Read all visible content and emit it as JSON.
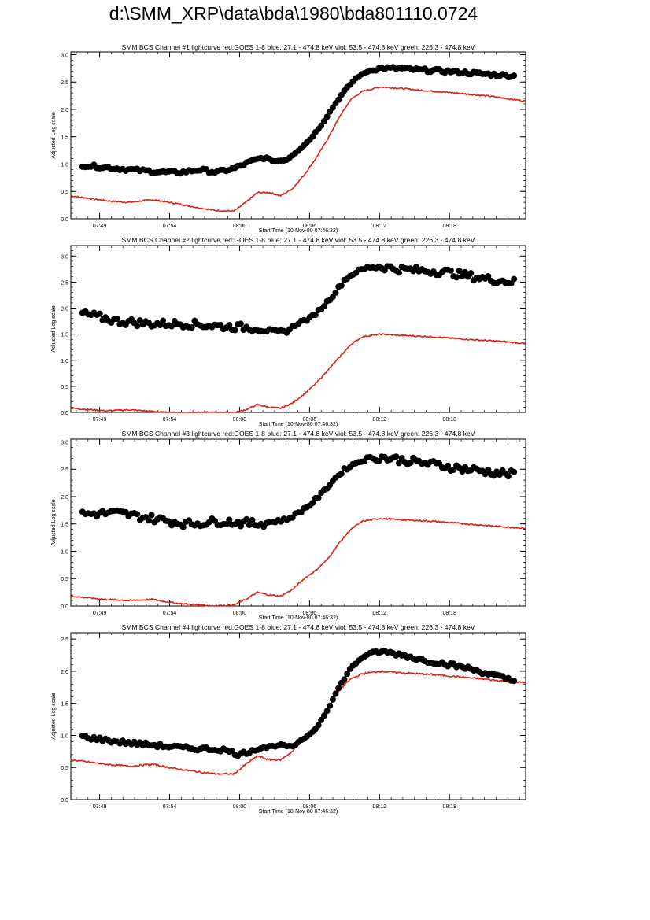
{
  "page": {
    "title": "d:\\SMM_XRP\\data\\bda\\1980\\bda801110.0724"
  },
  "colors": {
    "goes": "#dd1f10",
    "bcs": "#000000",
    "axis": "#000000"
  },
  "chart_data": [
    {
      "type": "line",
      "title": "SMM BCS Channel #1 lightcurve  red:GOES 1-8  blue: 27.1 - 474.8 keV  viol: 53.5 - 474.8 keV  green: 226.3 - 474.8 keV",
      "xlabel": "Start Time (10-Nov-80 07:46:32)",
      "ylabel": "Adjusted Log scale",
      "xlim": [
        0,
        39
      ],
      "ylim": [
        0,
        3.05
      ],
      "yticks": [
        0.0,
        0.5,
        1.0,
        1.5,
        2.0,
        2.5,
        3.0
      ],
      "ytick_labels": [
        "0.0",
        "0.5",
        "1.0",
        "1.5",
        "2.0",
        "2.5",
        "3.0"
      ],
      "xticks": [
        2.47,
        8.47,
        14.47,
        20.47,
        26.47,
        32.47
      ],
      "xtick_labels": [
        "07:49",
        "07:54",
        "08:00",
        "08:06",
        "08:12",
        "08:18"
      ],
      "series": [
        {
          "name": "BCS",
          "style": "markers",
          "color": "#000000",
          "x": [
            1.0,
            5.0,
            8.0,
            9.5,
            11.0,
            12.5,
            14.0,
            15.5,
            16.5,
            17.5,
            18.5,
            19.5,
            20.5,
            21.5,
            22.5,
            23.5,
            24.5,
            25.5,
            26.5,
            28.0,
            30.0,
            32.0,
            34.0,
            36.0,
            38.0
          ],
          "y": [
            0.98,
            0.9,
            0.85,
            0.85,
            0.9,
            0.85,
            0.92,
            1.05,
            1.12,
            1.05,
            1.08,
            1.25,
            1.45,
            1.72,
            2.05,
            2.35,
            2.58,
            2.7,
            2.75,
            2.75,
            2.72,
            2.7,
            2.67,
            2.64,
            2.61
          ]
        },
        {
          "name": "GOES 1-8",
          "style": "line",
          "color": "#dd1f10",
          "x": [
            0.0,
            3.0,
            5.0,
            7.0,
            9.0,
            11.0,
            12.5,
            14.0,
            15.0,
            16.0,
            17.0,
            18.0,
            19.0,
            20.0,
            21.0,
            22.0,
            23.0,
            24.0,
            25.0,
            26.5,
            28.0,
            30.0,
            33.0,
            36.0,
            39.0
          ],
          "y": [
            0.42,
            0.33,
            0.3,
            0.35,
            0.28,
            0.2,
            0.15,
            0.14,
            0.3,
            0.48,
            0.48,
            0.42,
            0.55,
            0.8,
            1.1,
            1.45,
            1.85,
            2.18,
            2.33,
            2.41,
            2.39,
            2.35,
            2.3,
            2.24,
            2.15
          ]
        }
      ]
    },
    {
      "type": "line",
      "title": "SMM BCS Channel #2 lightcurve  red:GOES 1-8  blue: 27.1 - 474.8 keV  viol: 53.5 - 474.8 keV  green: 226.3 - 474.8 keV",
      "xlabel": "Start Time (10-Nov-80 07:46:32)",
      "ylabel": "Adjusted Log scale",
      "xlim": [
        0,
        39
      ],
      "ylim": [
        0,
        3.2
      ],
      "yticks": [
        0.0,
        0.5,
        1.0,
        1.5,
        2.0,
        2.5,
        3.0
      ],
      "ytick_labels": [
        "0.0",
        "0.5",
        "1.0",
        "1.5",
        "2.0",
        "2.5",
        "3.0"
      ],
      "xticks": [
        2.47,
        8.47,
        14.47,
        20.47,
        26.47,
        32.47
      ],
      "xtick_labels": [
        "07:49",
        "07:54",
        "08:00",
        "08:06",
        "08:12",
        "08:18"
      ],
      "series": [
        {
          "name": "BCS",
          "style": "markers",
          "color": "#000000",
          "x": [
            1.0,
            4.0,
            7.0,
            10.0,
            13.0,
            16.0,
            17.5,
            18.5,
            19.5,
            20.5,
            21.5,
            22.5,
            23.5,
            24.5,
            25.5,
            26.5,
            28.0,
            30.0,
            32.0,
            34.0,
            36.0,
            38.0
          ],
          "y": [
            1.9,
            1.75,
            1.7,
            1.7,
            1.65,
            1.62,
            1.55,
            1.55,
            1.72,
            1.8,
            2.0,
            2.25,
            2.55,
            2.7,
            2.78,
            2.8,
            2.75,
            2.72,
            2.7,
            2.62,
            2.55,
            2.5
          ]
        },
        {
          "name": "GOES 1-8",
          "style": "line",
          "color": "#dd1f10",
          "x": [
            0.0,
            3.0,
            5.0,
            7.0,
            8.0,
            9.0,
            12.0,
            14.0,
            15.0,
            16.0,
            17.0,
            18.0,
            19.0,
            20.0,
            21.0,
            22.0,
            23.0,
            24.0,
            25.0,
            26.5,
            28.0,
            31.0,
            34.0,
            37.0,
            39.0
          ],
          "y": [
            0.08,
            0.03,
            0.05,
            0.02,
            0.0,
            0.0,
            0.0,
            0.0,
            0.05,
            0.15,
            0.1,
            0.08,
            0.18,
            0.35,
            0.55,
            0.8,
            1.05,
            1.3,
            1.45,
            1.5,
            1.48,
            1.45,
            1.4,
            1.36,
            1.32
          ]
        }
      ]
    },
    {
      "type": "line",
      "title": "SMM BCS Channel #3 lightcurve  red:GOES 1-8  blue: 27.1 - 474.8 keV  viol: 53.5 - 474.8 keV  green: 226.3 - 474.8 keV",
      "xlabel": "Start Time (10-Nov-80 07:46:32)",
      "ylabel": "Adjusted Log scale",
      "xlim": [
        0,
        39
      ],
      "ylim": [
        0,
        3.05
      ],
      "yticks": [
        0.0,
        0.5,
        1.0,
        1.5,
        2.0,
        2.5,
        3.0
      ],
      "ytick_labels": [
        "0.0",
        "0.5",
        "1.0",
        "1.5",
        "2.0",
        "2.5",
        "3.0"
      ],
      "xticks": [
        2.47,
        8.47,
        14.47,
        20.47,
        26.47,
        32.47
      ],
      "xtick_labels": [
        "07:49",
        "07:54",
        "08:00",
        "08:06",
        "08:12",
        "08:18"
      ],
      "series": [
        {
          "name": "BCS",
          "style": "markers",
          "color": "#000000",
          "x": [
            1.0,
            4.0,
            7.0,
            10.0,
            13.0,
            16.0,
            17.5,
            18.5,
            19.5,
            20.5,
            21.5,
            22.5,
            23.5,
            24.5,
            25.5,
            26.5,
            28.0,
            30.0,
            32.0,
            34.0,
            36.0,
            38.0
          ],
          "y": [
            1.68,
            1.7,
            1.6,
            1.5,
            1.55,
            1.5,
            1.55,
            1.58,
            1.7,
            1.85,
            2.05,
            2.3,
            2.5,
            2.62,
            2.7,
            2.72,
            2.68,
            2.62,
            2.56,
            2.5,
            2.45,
            2.4
          ]
        },
        {
          "name": "GOES 1-8",
          "style": "line",
          "color": "#dd1f10",
          "x": [
            0.0,
            3.0,
            5.0,
            7.0,
            9.0,
            11.0,
            12.5,
            14.0,
            15.0,
            16.0,
            17.0,
            18.0,
            19.0,
            20.0,
            21.0,
            22.0,
            23.0,
            24.0,
            25.0,
            26.5,
            28.0,
            31.0,
            34.0,
            37.0,
            39.0
          ],
          "y": [
            0.18,
            0.12,
            0.1,
            0.12,
            0.05,
            0.02,
            0.0,
            0.02,
            0.12,
            0.25,
            0.2,
            0.18,
            0.3,
            0.5,
            0.65,
            0.85,
            1.15,
            1.4,
            1.55,
            1.6,
            1.58,
            1.55,
            1.5,
            1.45,
            1.42
          ]
        }
      ]
    },
    {
      "type": "line",
      "title": "SMM BCS Channel #4 lightcurve  red:GOES 1-8  blue: 27.1 - 474.8 keV  viol: 53.5 - 474.8 keV  green: 226.3 - 474.8 keV",
      "xlabel": "Start Time (10-Nov-80 07:46:32)",
      "ylabel": "Adjusted Log scale",
      "xlim": [
        0,
        39
      ],
      "ylim": [
        0,
        2.6
      ],
      "yticks": [
        0.0,
        0.5,
        1.0,
        1.5,
        2.0,
        2.5
      ],
      "ytick_labels": [
        "0.0",
        "0.5",
        "1.0",
        "1.5",
        "2.0",
        "2.5"
      ],
      "xticks": [
        2.47,
        8.47,
        14.47,
        20.47,
        26.47,
        32.47
      ],
      "xtick_labels": [
        "07:49",
        "07:54",
        "08:00",
        "08:06",
        "08:12",
        "08:18"
      ],
      "series": [
        {
          "name": "BCS",
          "style": "markers",
          "color": "#000000",
          "x": [
            1.0,
            4.0,
            7.0,
            10.0,
            13.0,
            14.5,
            16.0,
            18.0,
            19.0,
            20.0,
            21.0,
            22.0,
            23.0,
            24.0,
            25.0,
            26.0,
            27.0,
            28.5,
            30.0,
            32.0,
            34.0,
            36.0,
            38.0
          ],
          "y": [
            0.98,
            0.9,
            0.85,
            0.8,
            0.78,
            0.7,
            0.8,
            0.85,
            0.82,
            0.95,
            1.1,
            1.4,
            1.75,
            2.05,
            2.22,
            2.3,
            2.3,
            2.25,
            2.18,
            2.12,
            2.05,
            1.95,
            1.85
          ]
        },
        {
          "name": "GOES 1-8",
          "style": "line",
          "color": "#dd1f10",
          "x": [
            0.0,
            3.0,
            5.0,
            7.0,
            9.0,
            11.0,
            12.5,
            14.0,
            15.0,
            16.0,
            17.0,
            18.0,
            19.0,
            20.0,
            21.0,
            22.0,
            23.0,
            24.0,
            25.0,
            26.5,
            28.0,
            31.0,
            34.0,
            37.0,
            39.0
          ],
          "y": [
            0.62,
            0.55,
            0.52,
            0.55,
            0.48,
            0.43,
            0.4,
            0.4,
            0.55,
            0.68,
            0.62,
            0.62,
            0.75,
            0.95,
            1.15,
            1.4,
            1.7,
            1.88,
            1.96,
            2.0,
            1.98,
            1.95,
            1.9,
            1.85,
            1.82
          ]
        }
      ]
    }
  ]
}
